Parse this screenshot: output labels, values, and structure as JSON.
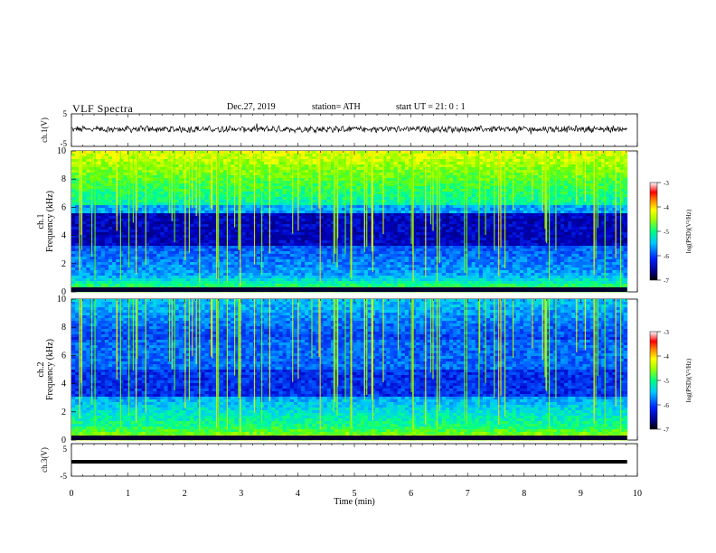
{
  "header": {
    "title": "VLF Spectra",
    "date": "Dec.27, 2019",
    "station": "station= ATH",
    "start": "start  UT  =   21: 0  : 1"
  },
  "chart_data": [
    {
      "type": "line",
      "name": "ch1-waveform",
      "ylabel": "ch.1(V)",
      "ylim": [
        -5,
        5
      ],
      "y_ticks": [
        "5",
        "-5"
      ],
      "description_values": {
        "mean_V": 0.3,
        "approx_amplitude_V": 1.2
      }
    },
    {
      "type": "heatmap",
      "name": "ch1-spectrogram",
      "ylabel": "ch.1\nFrequency (kHz)",
      "ylabel_top": "ch.1",
      "ylabel_bottom": "Frequency (kHz)",
      "ylim": [
        0,
        10
      ],
      "y_ticks": [
        "0",
        "2",
        "4",
        "6",
        "8",
        "10"
      ],
      "colorbar": {
        "label": "log(PSD)(V²/Hz)",
        "range": [
          -7,
          -3
        ],
        "ticks": [
          "-3",
          "-4",
          "-5",
          "-6",
          "-7"
        ]
      }
    },
    {
      "type": "heatmap",
      "name": "ch2-spectrogram",
      "ylabel_top": "ch.2",
      "ylabel_bottom": "Frequency (kHz)",
      "ylim": [
        0,
        10
      ],
      "y_ticks": [
        "0",
        "2",
        "4",
        "6",
        "8",
        "10"
      ],
      "colorbar": {
        "label": "log(PSD)(V²/Hz)",
        "range": [
          -7,
          -3
        ],
        "ticks": [
          "-3",
          "-4",
          "-5",
          "-6",
          "-7"
        ]
      }
    },
    {
      "type": "line",
      "name": "ch3-waveform",
      "ylabel": "ch.3(V)",
      "ylim": [
        -5,
        5
      ],
      "y_ticks": [
        "5",
        "-5"
      ],
      "description_values": {
        "constant_V": -1.3
      }
    }
  ],
  "x_axis": {
    "label": "Time  (min)",
    "xlim": [
      0,
      10
    ],
    "ticks": [
      "0",
      "1",
      "2",
      "3",
      "4",
      "5",
      "6",
      "7",
      "8",
      "9",
      "10"
    ],
    "data_end_min": 9.82
  },
  "colors": {
    "colormap": [
      "#000060",
      "#0000c8",
      "#0050ff",
      "#00c8ff",
      "#00ff90",
      "#70ff00",
      "#ffff00",
      "#ff9000",
      "#ff0000",
      "#ffffff"
    ]
  }
}
